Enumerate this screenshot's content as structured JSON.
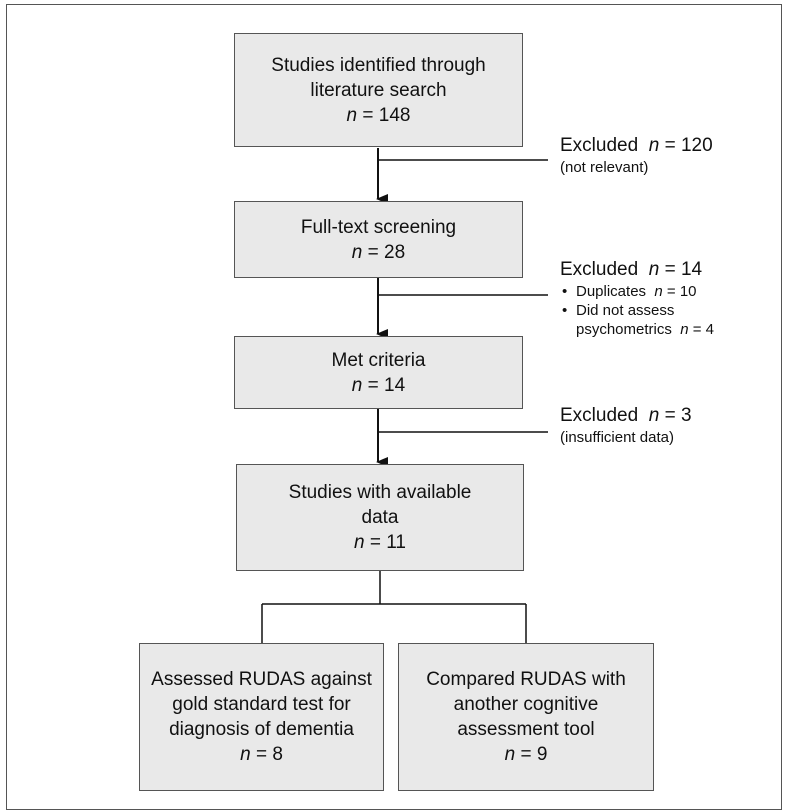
{
  "boxes": {
    "identified": {
      "lines": [
        "Studies identified through",
        "literature search"
      ],
      "n": "148"
    },
    "fulltext": {
      "lines": [
        "Full-text screening"
      ],
      "n": "28"
    },
    "criteria": {
      "lines": [
        "Met criteria"
      ],
      "n": "14"
    },
    "available": {
      "lines": [
        "Studies with available",
        "data"
      ],
      "n": "11"
    },
    "gold": {
      "lines": [
        "Assessed RUDAS against",
        "gold standard test for",
        "diagnosis of dementia"
      ],
      "n": "8"
    },
    "compared": {
      "lines": [
        "Compared RUDAS with",
        "another cognitive",
        "assessment tool"
      ],
      "n": "9"
    }
  },
  "exclusions": {
    "first": {
      "label": "Excluded",
      "n": "120",
      "note": "(not relevant)"
    },
    "second": {
      "label": "Excluded",
      "n": "14",
      "items": [
        {
          "text": "Duplicates",
          "n": "10"
        },
        {
          "text": "Did not assess",
          "text2": "psychometrics",
          "n": "4"
        }
      ]
    },
    "third": {
      "label": "Excluded",
      "n": "3",
      "note": "(insufficient data)"
    }
  },
  "n_symbol": "n",
  "equals": "="
}
